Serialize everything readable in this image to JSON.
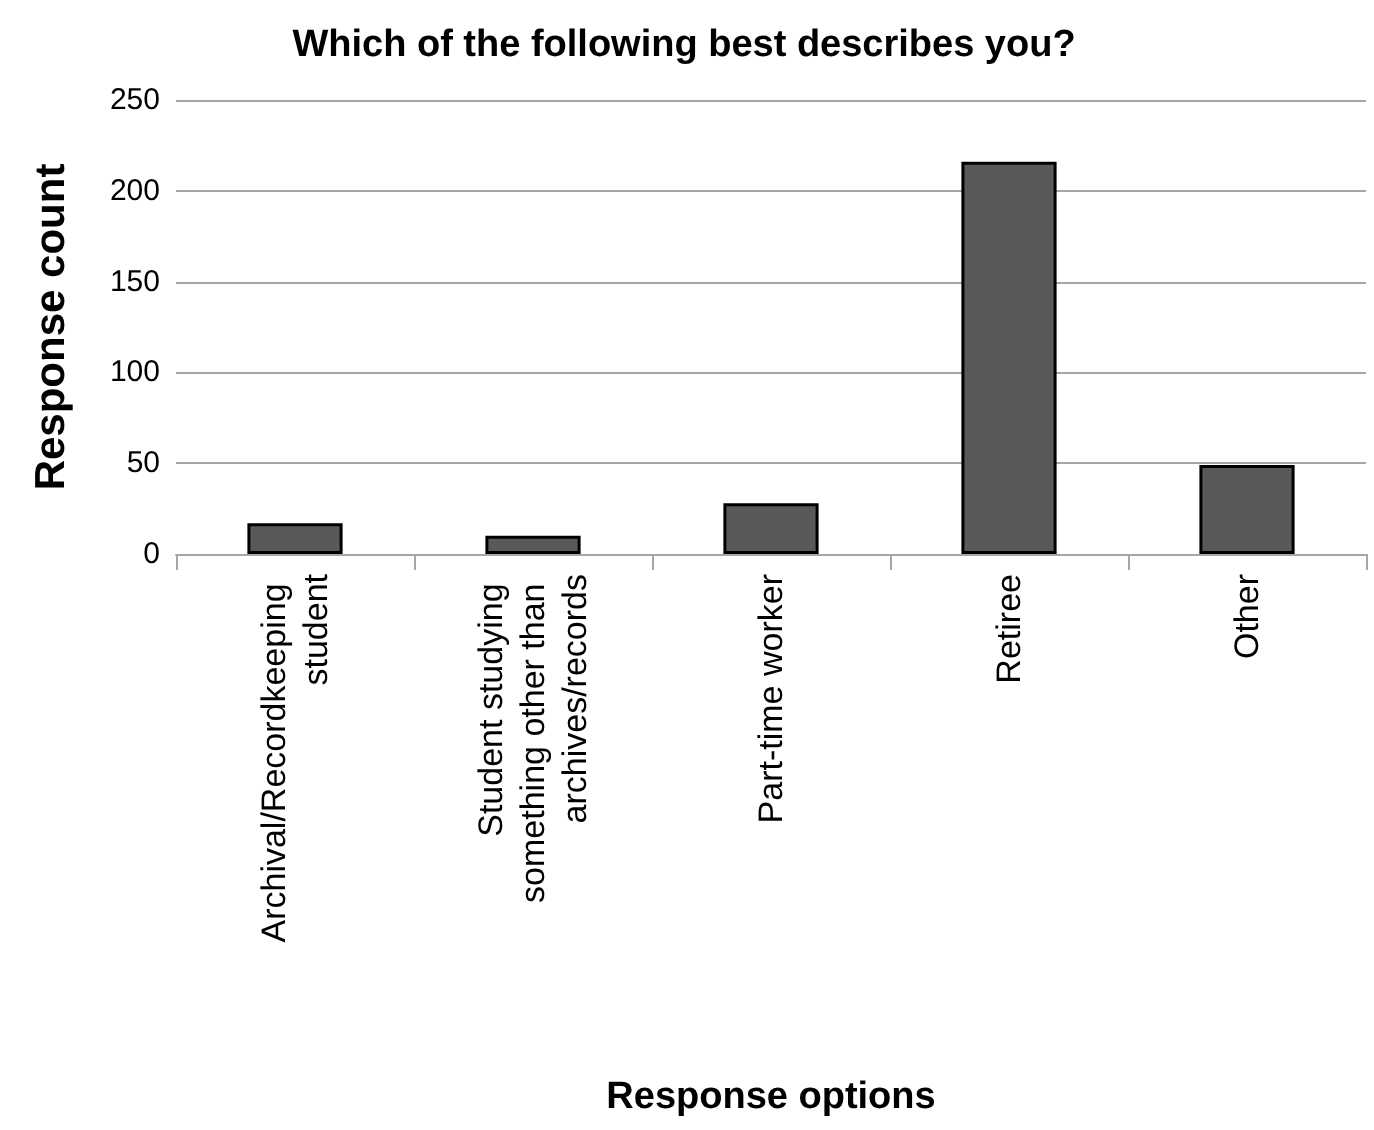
{
  "chart_data": {
    "type": "bar",
    "title": "Which of the following best describes you?",
    "xlabel": "Response options",
    "ylabel": "Response count",
    "categories": [
      "Archival/Recordkeeping student",
      "Student studying something other than archives/records",
      "Part-time worker",
      "Retiree",
      "Other"
    ],
    "values": [
      17,
      10,
      28,
      216,
      49
    ],
    "color": "#595959",
    "ylim": [
      0,
      250
    ],
    "yticks": [
      0,
      50,
      100,
      150,
      200,
      250
    ],
    "grid": "y"
  }
}
